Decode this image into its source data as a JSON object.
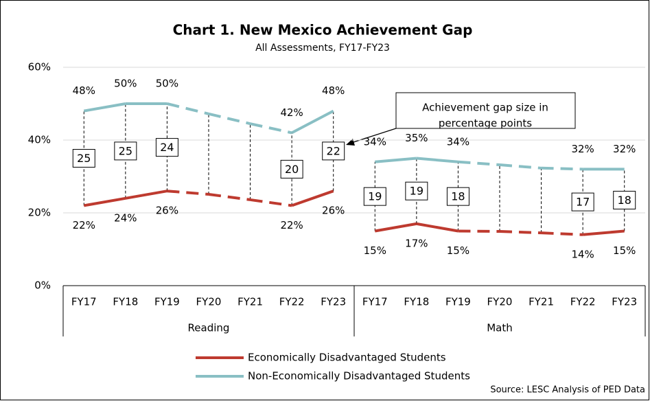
{
  "chart_data": {
    "type": "line",
    "title": "Chart 1. New Mexico Achievement Gap",
    "subtitle": "All Assessments, FY17-FY23",
    "source": "Source: LESC Analysis of PED Data",
    "annotation": [
      "Achievement gap size in",
      "percentage points"
    ],
    "categories": [
      "FY17",
      "FY18",
      "FY19",
      "FY20",
      "FY21",
      "FY22",
      "FY23",
      "FY17",
      "FY18",
      "FY19",
      "FY20",
      "FY21",
      "FY22",
      "FY23"
    ],
    "groups": [
      {
        "name": "Reading",
        "size": 7
      },
      {
        "name": "Math",
        "size": 7
      }
    ],
    "series": [
      {
        "name": "Economically Disadvantaged Students",
        "color": "#be3a2f",
        "values": [
          22,
          24,
          26,
          25.1,
          23.6,
          22,
          26,
          15,
          17,
          15,
          14.9,
          14.5,
          14,
          15
        ],
        "value_labels": [
          "22%",
          "24%",
          "26%",
          null,
          null,
          "22%",
          "26%",
          "15%",
          "17%",
          "15%",
          null,
          null,
          "14%",
          "15%"
        ]
      },
      {
        "name": "Non-Economically Disadvantaged Students",
        "color": "#89bfc4",
        "values": [
          48,
          50,
          50,
          47.2,
          44.5,
          42,
          48,
          34,
          35,
          34,
          33.2,
          32.3,
          32,
          32
        ],
        "value_labels": [
          "48%",
          "50%",
          "50%",
          null,
          null,
          "42%",
          "48%",
          "34%",
          "35%",
          "34%",
          null,
          null,
          "32%",
          "32%"
        ]
      }
    ],
    "gaps": [
      25,
      25,
      24,
      null,
      null,
      20,
      22,
      19,
      19,
      18,
      null,
      null,
      17,
      18
    ],
    "ylim": [
      0,
      60
    ],
    "yticks": [
      {
        "value": 0,
        "label": "0%"
      },
      {
        "value": 20,
        "label": "20%"
      },
      {
        "value": 40,
        "label": "40%"
      },
      {
        "value": 60,
        "label": "60%"
      }
    ],
    "grid": true
  }
}
